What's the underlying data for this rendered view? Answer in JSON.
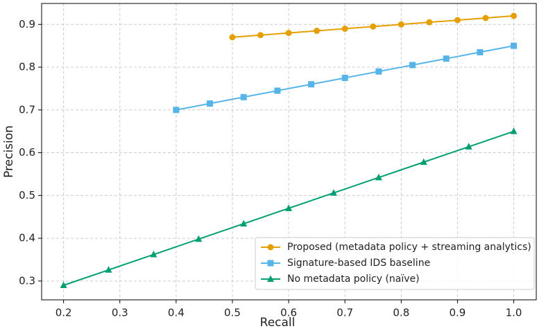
{
  "chart_data": {
    "type": "line",
    "xlabel": "Recall",
    "ylabel": "Precision",
    "xlim": [
      0.161,
      1.04
    ],
    "ylim": [
      0.256,
      0.949
    ],
    "xticks": [
      0.2,
      0.3,
      0.4,
      0.5,
      0.6,
      0.7,
      0.8,
      0.9,
      {
        "value": 1,
        "label": "1.0"
      }
    ],
    "yticks": [
      0.3,
      0.4,
      0.5,
      0.6,
      0.7,
      0.8,
      0.9
    ],
    "grid": true,
    "legend": "lower right",
    "series": [
      {
        "name": "Proposed (metadata policy + streaming analytics)",
        "color": "#E69F00",
        "marker": "circle",
        "x": [
          0.5,
          0.55,
          0.6,
          0.65,
          0.7,
          0.75,
          0.8,
          0.85,
          0.9,
          0.95,
          1.0
        ],
        "values": [
          0.87,
          0.875,
          0.88,
          0.885,
          0.89,
          0.895,
          0.9,
          0.905,
          0.91,
          0.915,
          0.92
        ]
      },
      {
        "name": "Signature-based IDS baseline",
        "color": "#56B4E9",
        "marker": "square",
        "x": [
          0.4,
          0.46,
          0.52,
          0.58,
          0.64,
          0.7,
          0.76,
          0.82,
          0.88,
          0.94,
          1.0
        ],
        "values": [
          0.7,
          0.715,
          0.73,
          0.745,
          0.76,
          0.775,
          0.79,
          0.805,
          0.82,
          0.835,
          0.85
        ]
      },
      {
        "name": "No metadata policy (naïve)",
        "color": "#009E73",
        "marker": "triangle",
        "x": [
          0.2,
          0.28,
          0.36,
          0.44,
          0.52,
          0.6,
          0.68,
          0.76,
          0.84,
          0.92,
          1.0
        ],
        "values": [
          0.29,
          0.326,
          0.362,
          0.398,
          0.434,
          0.47,
          0.506,
          0.542,
          0.578,
          0.614,
          0.65
        ]
      }
    ]
  }
}
